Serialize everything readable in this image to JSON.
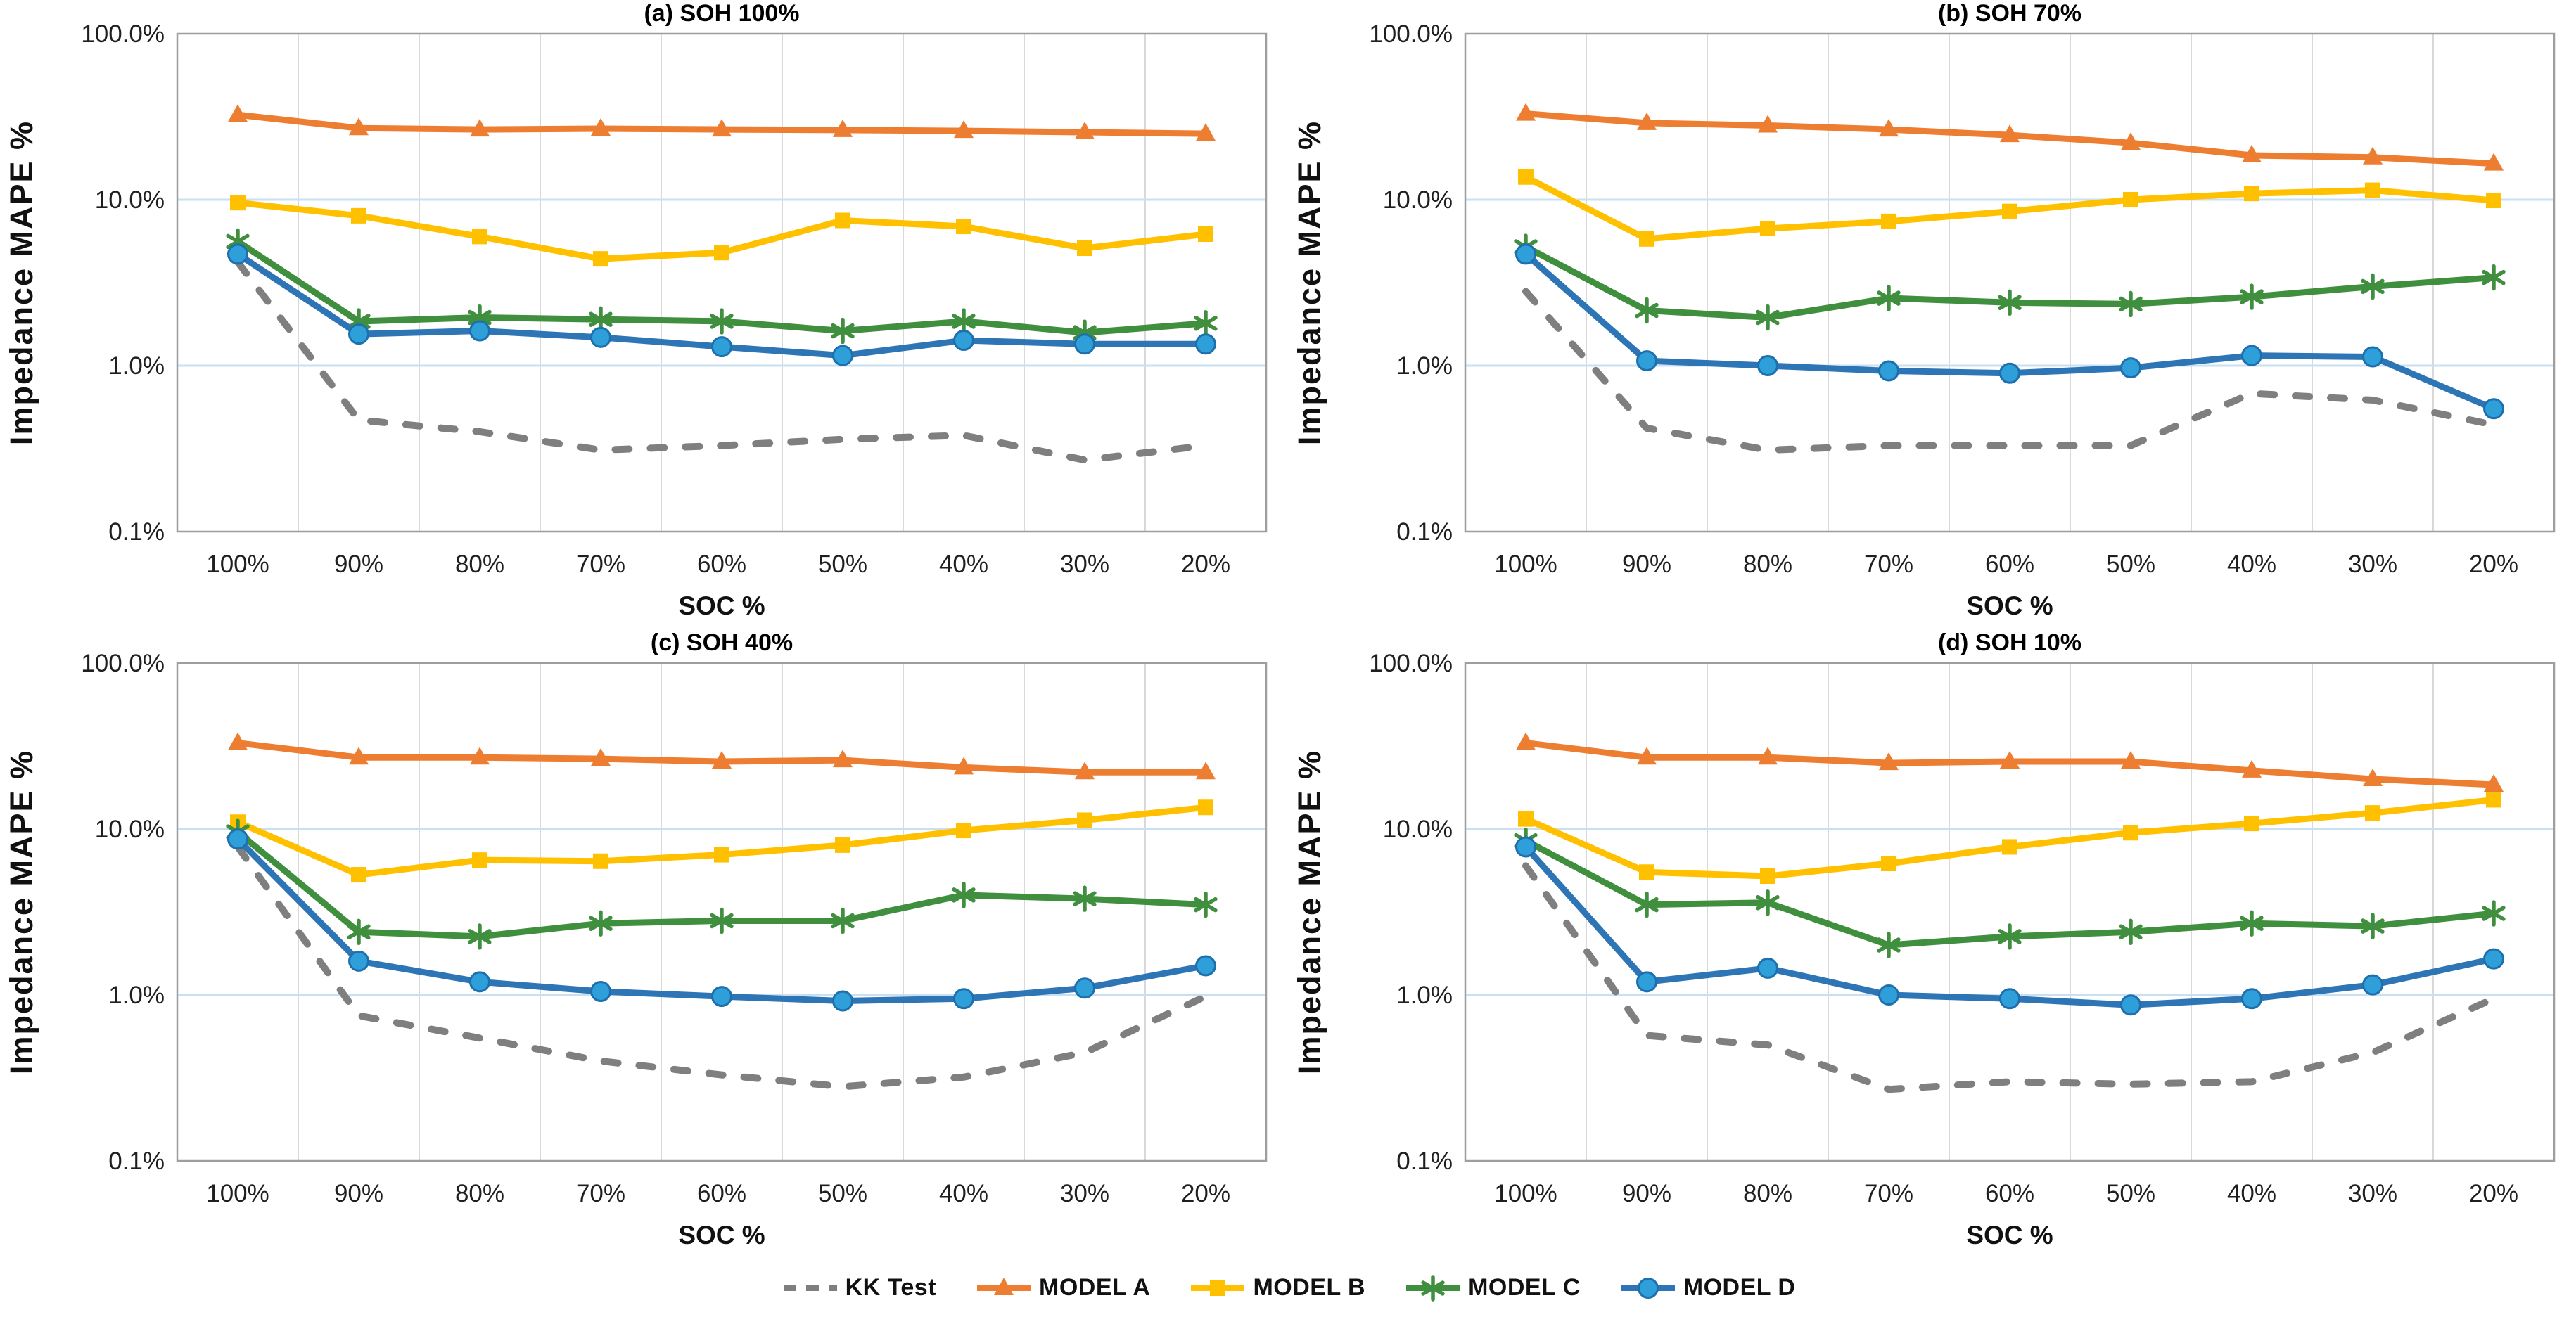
{
  "page": {
    "background": "#FFFFFF"
  },
  "figure": {
    "y_axis_label": "Impedance MAPE %",
    "x_axis_label": "SOC %",
    "x_categories": [
      "100%",
      "90%",
      "80%",
      "70%",
      "60%",
      "50%",
      "40%",
      "30%",
      "20%"
    ],
    "y_tick_labels": [
      "100.0%",
      "10.0%",
      "1.0%",
      "0.1%"
    ],
    "y_tick_values": [
      100,
      10,
      1,
      0.1
    ],
    "y_scale": "log",
    "ylim": [
      0.1,
      100
    ]
  },
  "colors": {
    "kk_test": "#7F7F7F",
    "model_a": "#ED7D31",
    "model_b": "#FFC000",
    "model_c": "#3F8F3F",
    "model_d_line": "#2E75B6",
    "model_d_fill": "#2E9FD9",
    "model_d_edge": "#1E6FAD",
    "gridline_h": "#C9E0F2",
    "gridline_v": "#D9D9D9",
    "plot_border": "#9E9E9E",
    "text": "#1F1F1F"
  },
  "legend": {
    "items": [
      {
        "key": "kk-test",
        "label": "KK Test",
        "marker": "dash",
        "color": "#7F7F7F"
      },
      {
        "key": "model-a",
        "label": "MODEL A",
        "marker": "triangle",
        "color": "#ED7D31"
      },
      {
        "key": "model-b",
        "label": "MODEL B",
        "marker": "square",
        "color": "#FFC000"
      },
      {
        "key": "model-c",
        "label": "MODEL C",
        "marker": "star",
        "color": "#3F8F3F"
      },
      {
        "key": "model-d",
        "label": "MODEL D",
        "marker": "circle",
        "color": "#2E75B6"
      }
    ]
  },
  "chart_data": [
    {
      "type": "line",
      "title": "(a) SOH 100%",
      "xlabel": "SOC %",
      "ylabel": "Impedance MAPE %",
      "y_scale": "log",
      "ylim": [
        0.1,
        100
      ],
      "categories": [
        "100%",
        "90%",
        "80%",
        "70%",
        "60%",
        "50%",
        "40%",
        "30%",
        "20%"
      ],
      "series": [
        {
          "name": "KK Test",
          "marker": "dash",
          "dashed": true,
          "color": "#7F7F7F",
          "values": [
            4.2,
            0.47,
            0.4,
            0.31,
            0.33,
            0.36,
            0.38,
            0.27,
            0.33
          ]
        },
        {
          "name": "MODEL A",
          "marker": "triangle",
          "dashed": false,
          "color": "#ED7D31",
          "values": [
            32.5,
            27,
            26.5,
            26.8,
            26.5,
            26.3,
            26,
            25.5,
            25
          ]
        },
        {
          "name": "MODEL B",
          "marker": "square",
          "dashed": false,
          "color": "#FFC000",
          "values": [
            9.6,
            8.0,
            6.0,
            4.4,
            4.8,
            7.5,
            6.9,
            5.1,
            6.2
          ]
        },
        {
          "name": "MODEL C",
          "marker": "star",
          "dashed": false,
          "color": "#3F8F3F",
          "values": [
            5.6,
            1.85,
            1.95,
            1.9,
            1.85,
            1.62,
            1.85,
            1.58,
            1.8
          ]
        },
        {
          "name": "MODEL D",
          "marker": "circle",
          "dashed": false,
          "color": "#2E75B6",
          "values": [
            4.7,
            1.55,
            1.62,
            1.48,
            1.3,
            1.15,
            1.42,
            1.35,
            1.35
          ]
        }
      ]
    },
    {
      "type": "line",
      "title": "(b) SOH 70%",
      "xlabel": "SOC %",
      "ylabel": "Impedance MAPE %",
      "y_scale": "log",
      "ylim": [
        0.1,
        100
      ],
      "categories": [
        "100%",
        "90%",
        "80%",
        "70%",
        "60%",
        "50%",
        "40%",
        "30%",
        "20%"
      ],
      "series": [
        {
          "name": "KK Test",
          "marker": "dash",
          "dashed": true,
          "color": "#7F7F7F",
          "values": [
            2.8,
            0.42,
            0.31,
            0.33,
            0.33,
            0.33,
            0.68,
            0.62,
            0.44
          ]
        },
        {
          "name": "MODEL A",
          "marker": "triangle",
          "dashed": false,
          "color": "#ED7D31",
          "values": [
            33,
            29,
            28,
            26.5,
            24.5,
            22,
            18.5,
            18,
            16.5
          ]
        },
        {
          "name": "MODEL B",
          "marker": "square",
          "dashed": false,
          "color": "#FFC000",
          "values": [
            13.7,
            5.8,
            6.7,
            7.4,
            8.5,
            10.0,
            10.9,
            11.4,
            9.9
          ]
        },
        {
          "name": "MODEL C",
          "marker": "star",
          "dashed": false,
          "color": "#3F8F3F",
          "values": [
            5.2,
            2.15,
            1.95,
            2.55,
            2.4,
            2.35,
            2.6,
            3.0,
            3.4
          ]
        },
        {
          "name": "MODEL D",
          "marker": "circle",
          "dashed": false,
          "color": "#2E75B6",
          "values": [
            4.7,
            1.07,
            1.0,
            0.93,
            0.9,
            0.97,
            1.15,
            1.13,
            0.55
          ]
        }
      ]
    },
    {
      "type": "line",
      "title": "(c) SOH 40%",
      "xlabel": "SOC %",
      "ylabel": "Impedance MAPE %",
      "y_scale": "log",
      "ylim": [
        0.1,
        100
      ],
      "categories": [
        "100%",
        "90%",
        "80%",
        "70%",
        "60%",
        "50%",
        "40%",
        "30%",
        "20%"
      ],
      "series": [
        {
          "name": "KK Test",
          "marker": "dash",
          "dashed": true,
          "color": "#7F7F7F",
          "values": [
            7.8,
            0.75,
            0.55,
            0.4,
            0.33,
            0.28,
            0.32,
            0.45,
            0.98
          ]
        },
        {
          "name": "MODEL A",
          "marker": "triangle",
          "dashed": false,
          "color": "#ED7D31",
          "values": [
            33,
            27,
            27,
            26.5,
            25.5,
            26,
            23.5,
            22,
            22
          ]
        },
        {
          "name": "MODEL B",
          "marker": "square",
          "dashed": false,
          "color": "#FFC000",
          "values": [
            11.0,
            5.3,
            6.5,
            6.4,
            7.0,
            8.0,
            9.8,
            11.3,
            13.5
          ]
        },
        {
          "name": "MODEL C",
          "marker": "star",
          "dashed": false,
          "color": "#3F8F3F",
          "values": [
            9.6,
            2.4,
            2.25,
            2.7,
            2.8,
            2.8,
            4.0,
            3.8,
            3.5
          ]
        },
        {
          "name": "MODEL D",
          "marker": "circle",
          "dashed": false,
          "color": "#2E75B6",
          "values": [
            8.7,
            1.6,
            1.2,
            1.05,
            0.98,
            0.92,
            0.95,
            1.1,
            1.5
          ]
        }
      ]
    },
    {
      "type": "line",
      "title": "(d) SOH 10%",
      "xlabel": "SOC %",
      "ylabel": "Impedance MAPE %",
      "y_scale": "log",
      "ylim": [
        0.1,
        100
      ],
      "categories": [
        "100%",
        "90%",
        "80%",
        "70%",
        "60%",
        "50%",
        "40%",
        "30%",
        "20%"
      ],
      "series": [
        {
          "name": "KK Test",
          "marker": "dash",
          "dashed": true,
          "color": "#7F7F7F",
          "values": [
            6.0,
            0.57,
            0.5,
            0.27,
            0.3,
            0.29,
            0.3,
            0.45,
            0.95
          ]
        },
        {
          "name": "MODEL A",
          "marker": "triangle",
          "dashed": false,
          "color": "#ED7D31",
          "values": [
            33,
            27,
            27,
            25,
            25.5,
            25.5,
            22.5,
            20,
            18.5
          ]
        },
        {
          "name": "MODEL B",
          "marker": "square",
          "dashed": false,
          "color": "#FFC000",
          "values": [
            11.5,
            5.5,
            5.2,
            6.2,
            7.8,
            9.5,
            10.8,
            12.5,
            15.0
          ]
        },
        {
          "name": "MODEL C",
          "marker": "star",
          "dashed": false,
          "color": "#3F8F3F",
          "values": [
            8.5,
            3.5,
            3.6,
            2.0,
            2.25,
            2.4,
            2.7,
            2.6,
            3.1
          ]
        },
        {
          "name": "MODEL D",
          "marker": "circle",
          "dashed": false,
          "color": "#2E75B6",
          "values": [
            7.8,
            1.2,
            1.45,
            1.0,
            0.95,
            0.87,
            0.95,
            1.15,
            1.65
          ]
        }
      ]
    }
  ]
}
